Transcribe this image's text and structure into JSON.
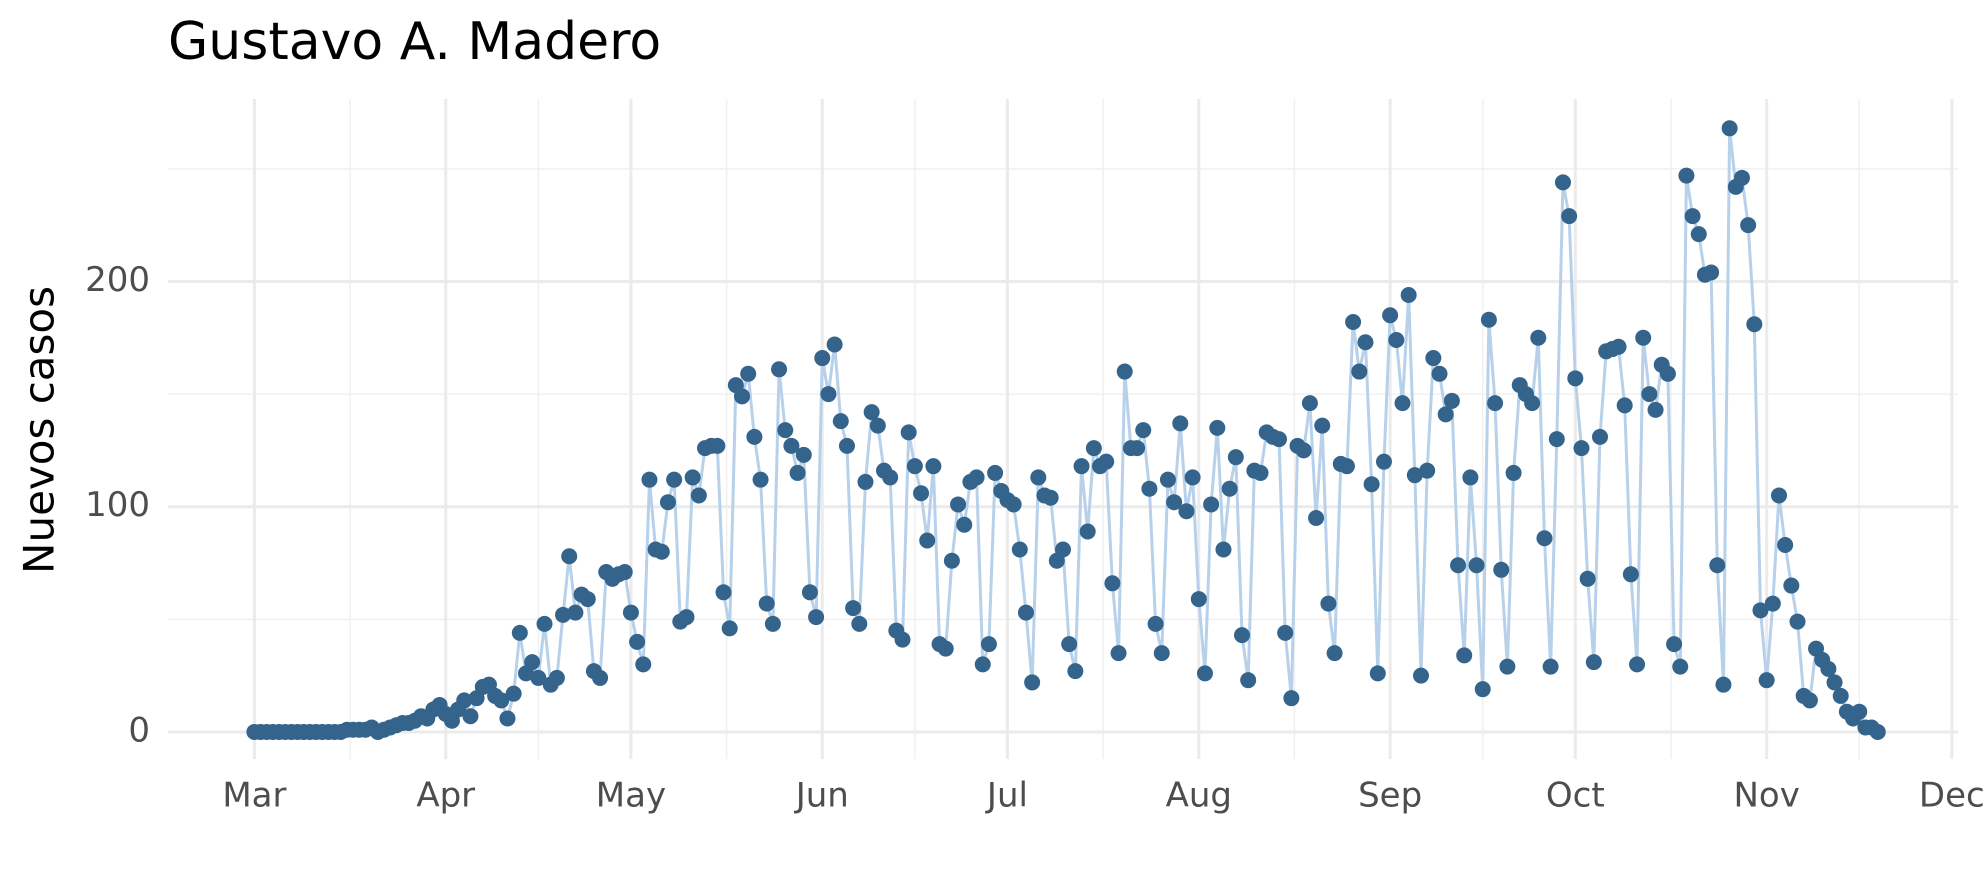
{
  "chart_data": {
    "type": "line",
    "title": "Gustavo A. Madero",
    "ylabel": "Nuevos casos",
    "x": [
      0,
      1,
      2,
      3,
      4,
      5,
      6,
      7,
      8,
      9,
      10,
      11,
      12,
      13,
      14,
      15,
      16,
      17,
      18,
      19,
      20,
      21,
      22,
      23,
      24,
      25,
      26,
      27,
      28,
      29,
      30,
      31,
      32,
      33,
      34,
      35,
      36,
      37,
      38,
      39,
      40,
      41,
      42,
      43,
      44,
      45,
      46,
      47,
      48,
      49,
      50,
      51,
      52,
      53,
      54,
      55,
      56,
      57,
      58,
      59,
      60,
      61,
      62,
      63,
      64,
      65,
      66,
      67,
      68,
      69,
      70,
      71,
      72,
      73,
      74,
      75,
      76,
      77,
      78,
      79,
      80,
      81,
      82,
      83,
      84,
      85,
      86,
      87,
      88,
      89,
      90,
      91,
      92,
      93,
      94,
      95,
      96,
      97,
      98,
      99,
      100,
      101,
      102,
      103,
      104,
      105,
      106,
      107,
      108,
      109,
      110,
      111,
      112,
      113,
      114,
      115,
      116,
      117,
      118,
      119,
      120,
      121,
      122,
      123,
      124,
      125,
      126,
      127,
      128,
      129,
      130,
      131,
      132,
      133,
      134,
      135,
      136,
      137,
      138,
      139,
      140,
      141,
      142,
      143,
      144,
      145,
      146,
      147,
      148,
      149,
      150,
      151,
      152,
      153,
      154,
      155,
      156,
      157,
      158,
      159,
      160,
      161,
      162,
      163,
      164,
      165,
      166,
      167,
      168,
      169,
      170,
      171,
      172,
      173,
      174,
      175,
      176,
      177,
      178,
      179,
      180,
      181,
      182,
      183,
      184,
      185,
      186,
      187,
      188,
      189,
      190,
      191,
      192,
      193,
      194,
      195,
      196,
      197,
      198,
      199,
      200,
      201,
      202,
      203,
      204,
      205,
      206,
      207,
      208,
      209,
      210,
      211,
      212,
      213,
      214,
      215,
      216,
      217,
      218,
      219,
      220,
      221,
      222,
      223,
      224,
      225,
      226,
      227,
      228,
      229,
      230,
      231,
      232,
      233,
      234,
      235,
      236,
      237,
      238,
      239,
      240,
      241,
      242,
      243,
      244,
      245,
      246,
      247,
      248,
      249,
      250,
      251,
      252,
      253,
      254,
      255,
      256,
      257,
      258,
      259,
      260,
      261,
      262,
      263
    ],
    "values": [
      0,
      0,
      0,
      0,
      0,
      0,
      0,
      0,
      0,
      0,
      0,
      0,
      0,
      0,
      0,
      1,
      1,
      1,
      1,
      2,
      0,
      1,
      2,
      3,
      4,
      4,
      5,
      7,
      6,
      10,
      12,
      8,
      5,
      10,
      14,
      7,
      15,
      20,
      21,
      16,
      14,
      6,
      17,
      44,
      26,
      31,
      24,
      48,
      21,
      24,
      52,
      78,
      53,
      61,
      59,
      27,
      24,
      71,
      68,
      70,
      71,
      53,
      40,
      30,
      112,
      81,
      80,
      102,
      112,
      49,
      51,
      113,
      105,
      126,
      127,
      127,
      62,
      46,
      154,
      149,
      159,
      131,
      112,
      57,
      48,
      161,
      134,
      127,
      115,
      123,
      62,
      51,
      166,
      150,
      172,
      138,
      127,
      55,
      48,
      111,
      142,
      136,
      116,
      113,
      45,
      41,
      133,
      118,
      106,
      85,
      118,
      39,
      37,
      76,
      101,
      92,
      111,
      113,
      30,
      39,
      115,
      107,
      103,
      101,
      81,
      53,
      22,
      113,
      105,
      104,
      76,
      81,
      39,
      27,
      118,
      89,
      126,
      118,
      120,
      66,
      35,
      160,
      126,
      126,
      134,
      108,
      48,
      35,
      112,
      102,
      137,
      98,
      113,
      59,
      26,
      101,
      135,
      81,
      108,
      122,
      43,
      23,
      116,
      115,
      133,
      131,
      130,
      44,
      15,
      127,
      125,
      146,
      95,
      136,
      57,
      35,
      119,
      118,
      182,
      160,
      173,
      110,
      26,
      120,
      185,
      174,
      146,
      194,
      114,
      25,
      116,
      166,
      159,
      141,
      147,
      74,
      34,
      113,
      74,
      19,
      183,
      146,
      72,
      29,
      115,
      154,
      150,
      146,
      175,
      86,
      29,
      130,
      244,
      229,
      157,
      126,
      68,
      31,
      131,
      169,
      170,
      171,
      145,
      70,
      30,
      175,
      150,
      143,
      163,
      159,
      39,
      29,
      247,
      229,
      221,
      203,
      204,
      74,
      21,
      268,
      242,
      246,
      225,
      181,
      54,
      23,
      57,
      105,
      83,
      65,
      49,
      16,
      14,
      37,
      32,
      28,
      22,
      16,
      9,
      6,
      9,
      2,
      2,
      0
    ],
    "color": "#34648c",
    "line_color": "#b7d1ea",
    "markers": true,
    "grid": true,
    "xlim": [
      -14,
      276
    ],
    "xticks": [
      {
        "value": 0,
        "label": "Mar"
      },
      {
        "value": 31,
        "label": "Apr"
      },
      {
        "value": 61,
        "label": "May"
      },
      {
        "value": 92,
        "label": "Jun"
      },
      {
        "value": 122,
        "label": "Jul"
      },
      {
        "value": 153,
        "label": "Aug"
      },
      {
        "value": 184,
        "label": "Sep"
      },
      {
        "value": 214,
        "label": "Oct"
      },
      {
        "value": 245,
        "label": "Nov"
      },
      {
        "value": 275,
        "label": "Dec"
      }
    ],
    "ylim": [
      -12,
      281
    ],
    "yticks": [
      0,
      100,
      200
    ]
  }
}
